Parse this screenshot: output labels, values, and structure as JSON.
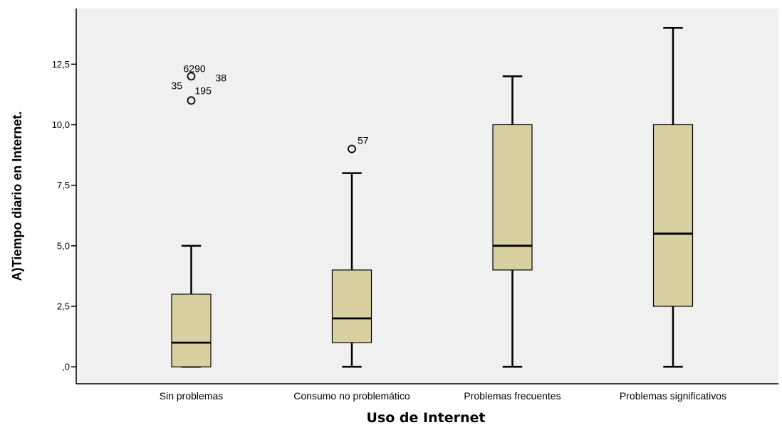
{
  "chart_data": {
    "type": "boxplot",
    "xlabel": "Uso de Internet",
    "ylabel": "A)Tiempo diario en Internet.",
    "ylim": [
      -0.7,
      14.8
    ],
    "yticks": [
      {
        "value": 0,
        "label": ",0"
      },
      {
        "value": 2.5,
        "label": "2,5"
      },
      {
        "value": 5,
        "label": "5,0"
      },
      {
        "value": 7.5,
        "label": "7,5"
      },
      {
        "value": 10,
        "label": "10,0"
      },
      {
        "value": 12.5,
        "label": "12,5"
      }
    ],
    "grid": false,
    "colors": {
      "plot_bg": "#f0f0f0",
      "box_fill": "#d8d0a0",
      "stroke": "#000000"
    },
    "categories": [
      "Sin problemas",
      "Consumo no problemático",
      "Problemas frecuentes",
      "Problemas significativos"
    ],
    "boxes": [
      {
        "min": 0,
        "q1": 0,
        "median": 1,
        "q3": 3,
        "max": 5,
        "outliers": [
          {
            "value": 12,
            "label": "6290"
          },
          {
            "value": 12,
            "label": "38"
          },
          {
            "value": 11,
            "label": "35"
          },
          {
            "value": 11,
            "label": "195"
          }
        ]
      },
      {
        "min": 0,
        "q1": 1,
        "median": 2,
        "q3": 4,
        "max": 8,
        "outliers": [
          {
            "value": 9,
            "label": "57"
          }
        ]
      },
      {
        "min": 0,
        "q1": 4,
        "median": 5,
        "q3": 10,
        "max": 12,
        "outliers": []
      },
      {
        "min": 0,
        "q1": 2.5,
        "median": 5.5,
        "q3": 10,
        "max": 14,
        "outliers": []
      }
    ]
  }
}
